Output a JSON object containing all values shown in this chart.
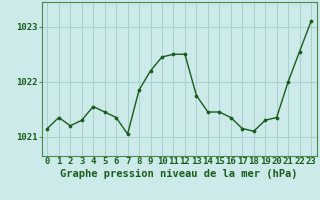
{
  "x": [
    0,
    1,
    2,
    3,
    4,
    5,
    6,
    7,
    8,
    9,
    10,
    11,
    12,
    13,
    14,
    15,
    16,
    17,
    18,
    19,
    20,
    21,
    22,
    23
  ],
  "y": [
    1021.15,
    1021.35,
    1021.2,
    1021.3,
    1021.55,
    1021.45,
    1021.35,
    1021.05,
    1021.85,
    1022.2,
    1022.45,
    1022.5,
    1022.5,
    1021.75,
    1021.45,
    1021.45,
    1021.35,
    1021.15,
    1021.1,
    1021.3,
    1021.35,
    1022.0,
    1022.55,
    1023.1
  ],
  "line_color": "#1a5c1a",
  "marker_color": "#1a5c1a",
  "bg_color": "#cceaea",
  "grid_color": "#aad0d0",
  "axis_label_color": "#1a5c1a",
  "tick_color": "#1a5c1a",
  "xlabel": "Graphe pression niveau de la mer (hPa)",
  "yticks": [
    1021,
    1022,
    1023
  ],
  "xlim": [
    -0.5,
    23.5
  ],
  "ylim": [
    1020.65,
    1023.45
  ],
  "spine_color": "#4a8a4a",
  "xlabel_fontsize": 7.5,
  "tick_fontsize": 6.5
}
